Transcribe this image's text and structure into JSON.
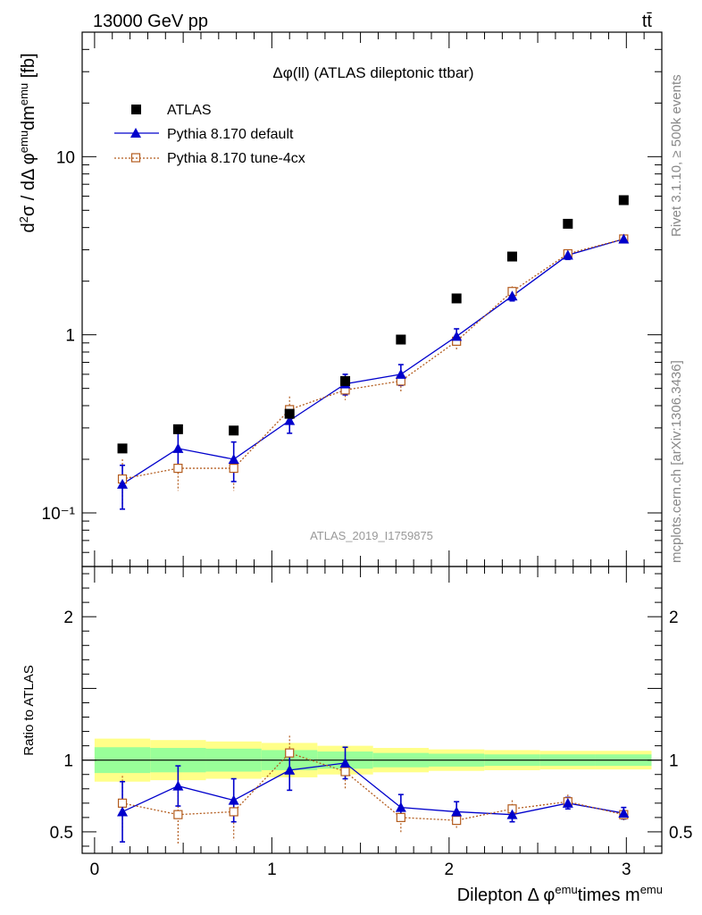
{
  "header": {
    "energy_label": "13000 GeV pp",
    "process_label": "tt̄"
  },
  "side_labels": {
    "rivet": "Rivet 3.1.10, ≥ 500k events",
    "mcplots": "mcplots.cern.ch [arXiv:1306.3436]"
  },
  "chart_data": {
    "type": "scatter",
    "title": "Δφ(ll) (ATLAS dileptonic ttbar)",
    "watermark": "ATLAS_2019_I1759875",
    "xlabel": "Dilepton Δ φ^emu times m^emu",
    "ylabel": "d²σ / dΔ φ^emu dm^emu [fb]",
    "ratio_ylabel": "Ratio to ATLAS",
    "xlim": [
      -0.07,
      3.2
    ],
    "ylim_main": [
      0.05,
      50
    ],
    "y_scale_main": "log",
    "ylim_ratio": [
      0.35,
      2.35
    ],
    "legend_position": "top-left",
    "x_ticks": [
      "0",
      "1",
      "2",
      "3"
    ],
    "y_ticks_main": [
      "10⁻¹",
      "1",
      "10"
    ],
    "y_ticks_ratio": [
      "0.5",
      "1",
      "2"
    ],
    "bin_edges": [
      0,
      0.314,
      0.628,
      0.942,
      1.257,
      1.571,
      1.885,
      2.199,
      2.513,
      2.827,
      3.142
    ],
    "x": [
      0.157,
      0.471,
      0.785,
      1.1,
      1.414,
      1.728,
      2.042,
      2.356,
      2.67,
      2.985
    ],
    "series": [
      {
        "name": "ATLAS",
        "marker": "square",
        "color": "#000000",
        "values": [
          0.23,
          0.295,
          0.29,
          0.36,
          0.55,
          0.94,
          1.6,
          2.75,
          4.2,
          5.7
        ]
      },
      {
        "name": "Pythia 8.170 default",
        "marker": "triangle",
        "color": "#0000cc",
        "values": [
          0.145,
          0.23,
          0.2,
          0.33,
          0.53,
          0.6,
          0.98,
          1.65,
          2.8,
          3.45
        ],
        "errors": [
          0.04,
          0.05,
          0.05,
          0.05,
          0.07,
          0.08,
          0.1,
          0.1,
          0.15,
          0.15
        ],
        "ratio": [
          0.64,
          0.82,
          0.72,
          0.93,
          0.98,
          0.67,
          0.64,
          0.62,
          0.7,
          0.63
        ],
        "ratio_errors": [
          0.21,
          0.14,
          0.15,
          0.14,
          0.11,
          0.09,
          0.07,
          0.05,
          0.04,
          0.04
        ]
      },
      {
        "name": "Pythia 8.170 tune-4cx",
        "marker": "open-square",
        "color": "#b35c1e",
        "values": [
          0.155,
          0.178,
          0.178,
          0.38,
          0.49,
          0.55,
          0.92,
          1.75,
          2.85,
          3.45
        ],
        "errors": [
          0.045,
          0.045,
          0.045,
          0.07,
          0.06,
          0.07,
          0.1,
          0.12,
          0.15,
          0.15
        ],
        "ratio": [
          0.7,
          0.62,
          0.64,
          1.05,
          0.92,
          0.6,
          0.58,
          0.66,
          0.71,
          0.62
        ],
        "ratio_errors": [
          0.19,
          0.21,
          0.2,
          0.12,
          0.12,
          0.11,
          0.06,
          0.06,
          0.05,
          0.04
        ]
      }
    ],
    "ratio_bands": {
      "inner_color": "#99ff99",
      "outer_color": "#ffff88",
      "inner_half_width": [
        0.09,
        0.085,
        0.08,
        0.07,
        0.06,
        0.05,
        0.045,
        0.04,
        0.04,
        0.04
      ],
      "outer_half_width": [
        0.15,
        0.14,
        0.13,
        0.12,
        0.1,
        0.085,
        0.075,
        0.07,
        0.065,
        0.065
      ]
    }
  }
}
